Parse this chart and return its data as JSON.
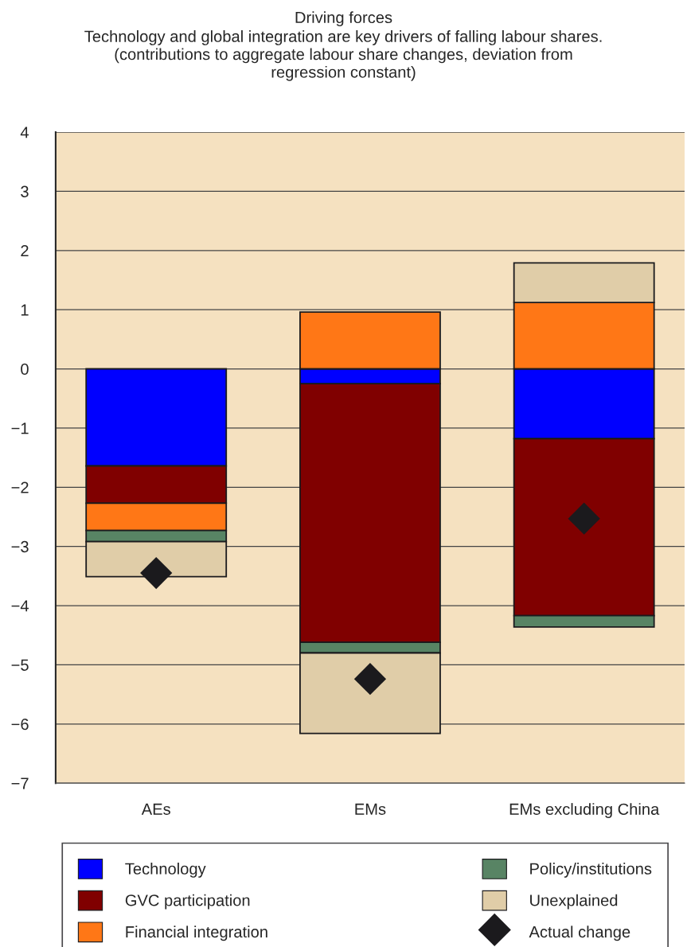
{
  "chart_data": {
    "type": "bar",
    "stacked": true,
    "title": "Driving forces",
    "subtitle": "Technology and global integration are key drivers of falling labour shares.\n(contributions to aggregate labour share changes, deviation from\nregression constant)",
    "categories": [
      "AEs",
      "EMs",
      "EMs excluding China"
    ],
    "series": [
      {
        "name": "Technology",
        "color": "#0000ff",
        "values": [
          -1.64,
          -0.25,
          -1.18
        ]
      },
      {
        "name": "GVC participation",
        "color": "#800000",
        "values": [
          -0.63,
          -4.37,
          -2.99
        ]
      },
      {
        "name": "Financial integration",
        "color": "#ff7716",
        "values": [
          -0.46,
          0.96,
          1.12
        ]
      },
      {
        "name": "Policy/institutions",
        "color": "#588464",
        "values": [
          -0.19,
          -0.18,
          -0.19
        ]
      },
      {
        "name": "Unexplained",
        "color": "#e0cda8",
        "values": [
          -0.59,
          -1.36,
          0.67
        ]
      },
      {
        "name": "Actual change",
        "type": "scatter",
        "marker": "diamond",
        "color": "#1b1a1d",
        "x": [
          "AEs",
          "EMs",
          "EMs excluding China"
        ],
        "values": [
          -3.45,
          -5.24,
          -2.53
        ]
      }
    ],
    "ylim": [
      -7,
      4
    ],
    "yticks": [
      -7,
      -6,
      -5,
      -4,
      -3,
      -2,
      -1,
      0,
      1,
      2,
      3,
      4
    ],
    "grid": "y",
    "legend": "bottom"
  }
}
